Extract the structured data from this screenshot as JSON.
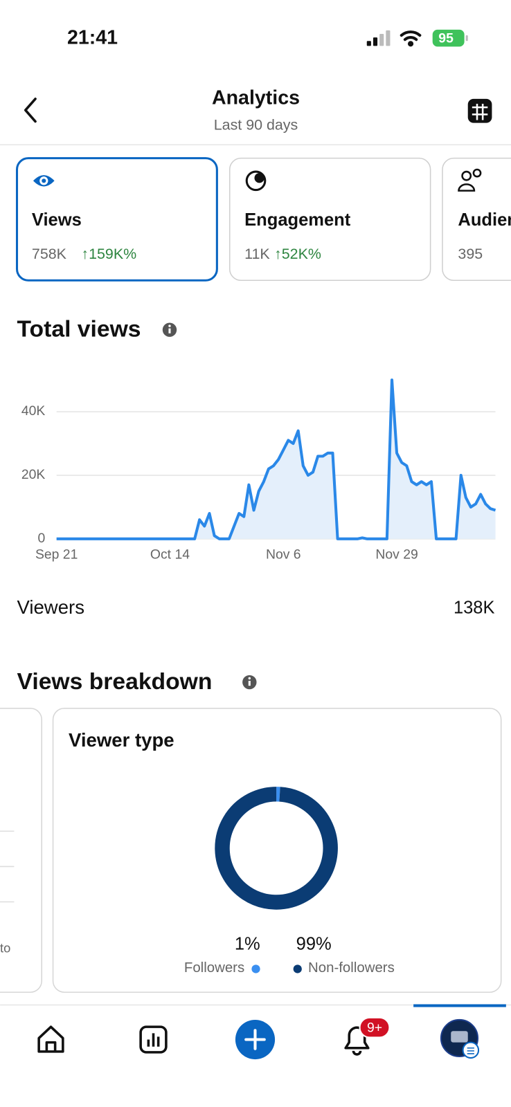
{
  "status_bar": {
    "time": "21:41",
    "battery": "95"
  },
  "header": {
    "title": "Analytics",
    "subtitle": "Last 90 days"
  },
  "metric_cards": [
    {
      "label": "Views",
      "value": "758K",
      "change": "↑159K%"
    },
    {
      "label": "Engagement",
      "value": "11K",
      "change": "↑52K%"
    },
    {
      "label": "Audience",
      "value": "395"
    }
  ],
  "viewers": {
    "label": "Viewers",
    "value": "138K"
  },
  "breakdown": {
    "title": "Views breakdown",
    "left_card_fragment": "to"
  },
  "nav": {
    "notification_badge": "9+"
  },
  "chart_data": [
    {
      "type": "line",
      "title": "Total views",
      "color": "#2a88e8",
      "area_color": "#e4effb",
      "x": [
        0,
        28,
        29,
        30,
        31,
        32,
        33,
        34,
        35,
        36,
        37,
        38,
        39,
        40,
        41,
        42,
        43,
        44,
        45,
        46,
        47,
        48,
        49,
        50,
        51,
        52,
        53,
        54,
        55,
        56,
        57,
        58,
        59,
        60,
        61,
        62,
        63,
        64,
        65,
        66,
        67,
        68,
        69,
        70,
        71,
        72,
        73,
        74,
        75,
        76,
        77,
        78,
        79,
        80,
        81,
        82,
        83,
        84,
        85,
        86,
        87,
        88,
        89
      ],
      "values": [
        0,
        0,
        6000,
        4000,
        8000,
        1000,
        0,
        0,
        0,
        4000,
        8000,
        7000,
        17000,
        9000,
        15000,
        18000,
        22000,
        23000,
        25000,
        28000,
        31000,
        30000,
        34000,
        23000,
        20000,
        21000,
        26000,
        26000,
        27000,
        27000,
        0,
        0,
        0,
        0,
        0,
        300,
        0,
        0,
        0,
        0,
        0,
        50000,
        27000,
        24000,
        23000,
        18000,
        17000,
        18000,
        17000,
        18000,
        0,
        0,
        0,
        0,
        0,
        20000,
        13000,
        10000,
        11000,
        14000,
        11000,
        9500,
        9000
      ],
      "xlim": [
        0,
        89
      ],
      "xticks": [
        {
          "value": 0,
          "label": "Sep 21"
        },
        {
          "value": 23,
          "label": "Oct 14"
        },
        {
          "value": 46,
          "label": "Nov 6"
        },
        {
          "value": 69,
          "label": "Nov 29"
        }
      ],
      "ylim": [
        0,
        50000
      ],
      "yticks": [
        0,
        {
          "value": 20000,
          "label": "20K"
        },
        {
          "value": 40000,
          "label": "40K"
        }
      ],
      "grid": true
    },
    {
      "type": "donut",
      "title": "Viewer type",
      "categories": [
        "Followers",
        "Non-followers"
      ],
      "values": [
        1,
        99
      ],
      "value_labels": [
        "1%",
        "99%"
      ],
      "colors": [
        "#3a8ff0",
        "#0b3c74"
      ]
    }
  ]
}
